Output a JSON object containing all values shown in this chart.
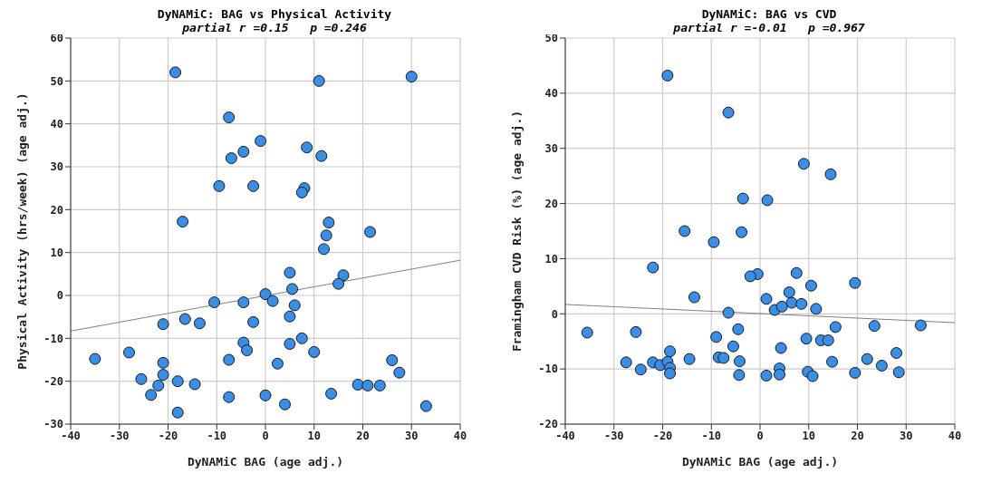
{
  "chart_data": [
    {
      "type": "scatter",
      "title": "DyNAMiC: BAG vs Physical Activity",
      "subtitle": "partial r =0.15   p =0.246",
      "xlabel": "DyNAMiC BAG (age adj.)",
      "ylabel": "Physical Activity (hrs/week) (age adj.)",
      "xlim": [
        -40,
        40
      ],
      "xticks": [
        -40,
        -30,
        -20,
        -10,
        0,
        10,
        20,
        30,
        40
      ],
      "ylim": [
        -30,
        60
      ],
      "yticks": [
        -30,
        -20,
        -10,
        0,
        10,
        20,
        30,
        40,
        50,
        60
      ],
      "grid": true,
      "legend": false,
      "marker": "circle",
      "series": [
        {
          "type": "scatter",
          "color": "#3a8ee6",
          "x": [
            -18.5,
            11,
            30,
            -7.5,
            -1,
            8.5,
            -4.5,
            -7,
            11.5,
            -9.5,
            -2.5,
            8,
            7.5,
            -17,
            13,
            12.5,
            21.5,
            12,
            5,
            16,
            15,
            5.5,
            0,
            -10.5,
            -4.5,
            1.5,
            6,
            -21,
            -16.5,
            -13.5,
            -2.5,
            5,
            7.5,
            -4.5,
            -3.8,
            5,
            10,
            -28,
            -35,
            -21,
            -7.5,
            2.5,
            26,
            27.5,
            -21,
            -25.5,
            -18,
            -14.5,
            -22,
            19,
            21,
            23.5,
            -23.5,
            -7.5,
            0,
            13.5,
            4,
            33,
            -18
          ],
          "values": [
            52,
            50,
            51,
            41.5,
            36,
            34.5,
            33.5,
            32,
            32.5,
            25.5,
            25.5,
            25,
            24,
            17.2,
            17,
            14,
            14.8,
            10.8,
            5.3,
            4.7,
            2.7,
            1.5,
            0.3,
            -1.6,
            -1.6,
            -1.3,
            -2.3,
            -6.7,
            -5.5,
            -6.5,
            -6.2,
            -4.9,
            -10,
            -11,
            -12.8,
            -11.3,
            -13.2,
            -13.3,
            -14.8,
            -15.7,
            -15,
            -15.9,
            -15.1,
            -18,
            -18.5,
            -19.5,
            -20,
            -20.7,
            -21,
            -20.8,
            -21,
            -21,
            -23.2,
            -23.7,
            -23.3,
            -22.9,
            -25.4,
            -25.8,
            -27.3
          ]
        },
        {
          "type": "line",
          "color": "#808080",
          "marker": "none",
          "x": [
            -40,
            40
          ],
          "values": [
            -8.3,
            8.2
          ]
        }
      ]
    },
    {
      "type": "scatter",
      "title": "DyNAMiC: BAG vs CVD",
      "subtitle": "partial r =-0.01   p =0.967",
      "xlabel": "DyNAMiC BAG (age adj.)",
      "ylabel": "Framingham CVD Risk (%) (age adj.)",
      "xlim": [
        -40,
        40
      ],
      "xticks": [
        -40,
        -30,
        -20,
        -10,
        0,
        10,
        20,
        30,
        40
      ],
      "ylim": [
        -20,
        50
      ],
      "yticks": [
        -20,
        -10,
        0,
        10,
        20,
        30,
        40,
        50
      ],
      "grid": true,
      "legend": false,
      "marker": "circle",
      "series": [
        {
          "type": "scatter",
          "color": "#3a8ee6",
          "x": [
            -19,
            -6.5,
            9,
            14.5,
            -3.5,
            1.5,
            -15.5,
            -3.8,
            -9.5,
            -22,
            7.5,
            -0.5,
            -2,
            10.5,
            19.5,
            6,
            -13.5,
            1.3,
            6.5,
            8.5,
            11.5,
            3,
            4.5,
            -6.5,
            -35.5,
            -25.5,
            -4.5,
            15.5,
            23.5,
            33,
            -9,
            9.5,
            12.5,
            14,
            -5.5,
            4.3,
            -27.5,
            -22,
            -20.5,
            -19,
            -18.5,
            -14.5,
            -8.5,
            -7.5,
            -4.2,
            -4.3,
            1.3,
            4,
            4,
            -24.5,
            -18.5,
            -18.5,
            9.8,
            10.8,
            14.8,
            19.5,
            22,
            25,
            28,
            28.5
          ],
          "values": [
            43.2,
            36.5,
            27.2,
            25.3,
            20.9,
            20.6,
            15,
            14.8,
            13,
            8.4,
            7.4,
            7.2,
            6.8,
            5.1,
            5.6,
            3.9,
            3,
            2.7,
            2,
            1.8,
            0.9,
            0.7,
            1.3,
            0.2,
            -3.4,
            -3.3,
            -2.8,
            -2.4,
            -2.2,
            -2.1,
            -4.2,
            -4.5,
            -4.8,
            -4.8,
            -5.9,
            -6.2,
            -8.8,
            -8.8,
            -9.3,
            -8.7,
            -6.8,
            -8.2,
            -7.9,
            -8,
            -8.6,
            -11.1,
            -11.2,
            -9.9,
            -11,
            -10.1,
            -9.8,
            -10.8,
            -10.5,
            -11.3,
            -8.7,
            -10.7,
            -8.2,
            -9.4,
            -7.1,
            -10.6
          ]
        },
        {
          "type": "line",
          "color": "#808080",
          "marker": "none",
          "x": [
            -40,
            40
          ],
          "values": [
            1.7,
            -1.6
          ]
        }
      ]
    }
  ]
}
